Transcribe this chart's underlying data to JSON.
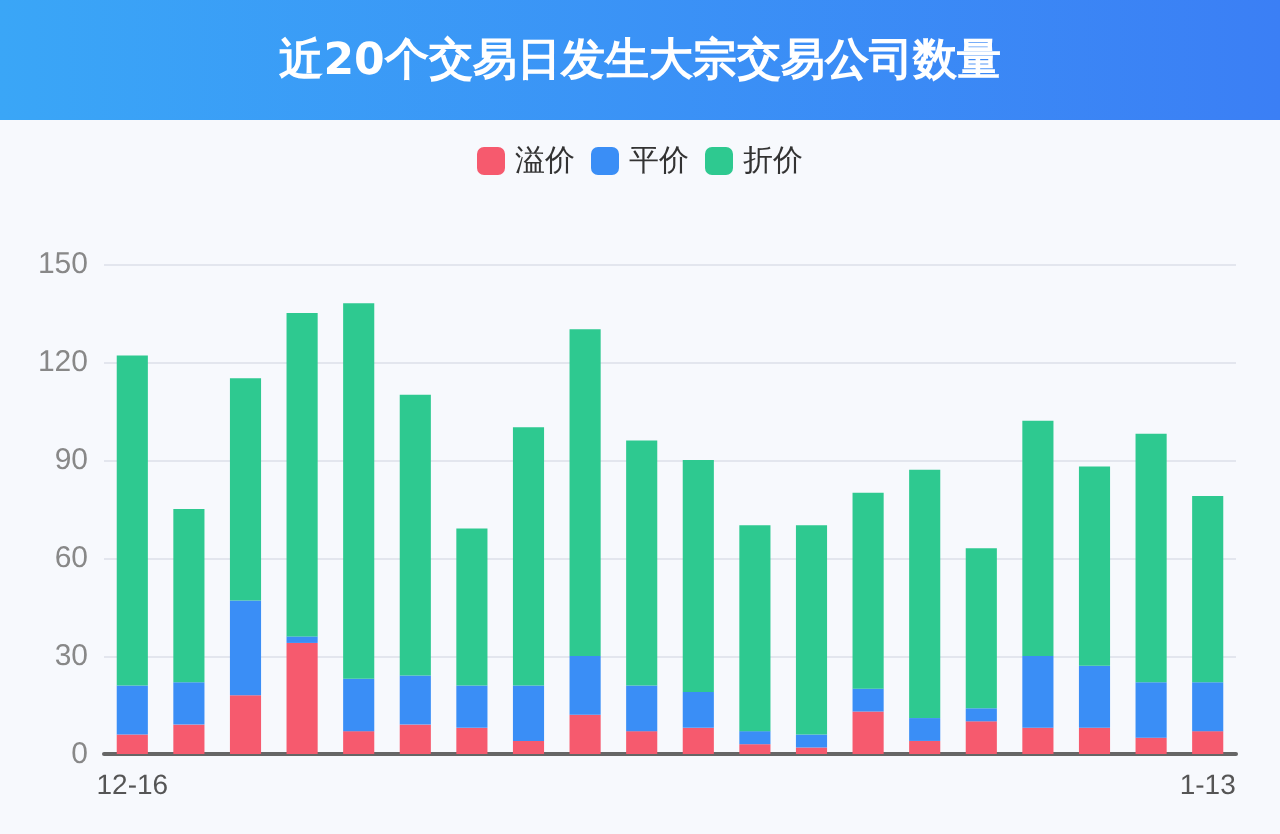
{
  "chart_data": {
    "type": "bar",
    "title": "近20个交易日发生大宗交易公司数量",
    "stacked": true,
    "categories": [
      "12-16",
      null,
      null,
      null,
      null,
      null,
      null,
      null,
      null,
      null,
      null,
      null,
      null,
      null,
      null,
      null,
      null,
      null,
      null,
      "1-13"
    ],
    "series": [
      {
        "name": "溢价",
        "color": "#f65a6e",
        "values": [
          6,
          9,
          18,
          34,
          7,
          9,
          8,
          4,
          12,
          7,
          8,
          3,
          2,
          13,
          4,
          10,
          8,
          8,
          5,
          7
        ]
      },
      {
        "name": "平价",
        "color": "#3a8ef6",
        "values": [
          15,
          13,
          29,
          2,
          16,
          15,
          13,
          17,
          18,
          14,
          11,
          4,
          4,
          7,
          7,
          4,
          22,
          19,
          17,
          15
        ]
      },
      {
        "name": "折价",
        "color": "#2ec990",
        "values": [
          101,
          53,
          68,
          99,
          115,
          86,
          48,
          79,
          100,
          75,
          71,
          63,
          64,
          60,
          76,
          49,
          72,
          61,
          76,
          57
        ]
      }
    ],
    "ylim": [
      0,
      150
    ],
    "yticks": [
      0,
      30,
      60,
      90,
      120,
      150
    ],
    "grid": "y",
    "legend": "top"
  }
}
